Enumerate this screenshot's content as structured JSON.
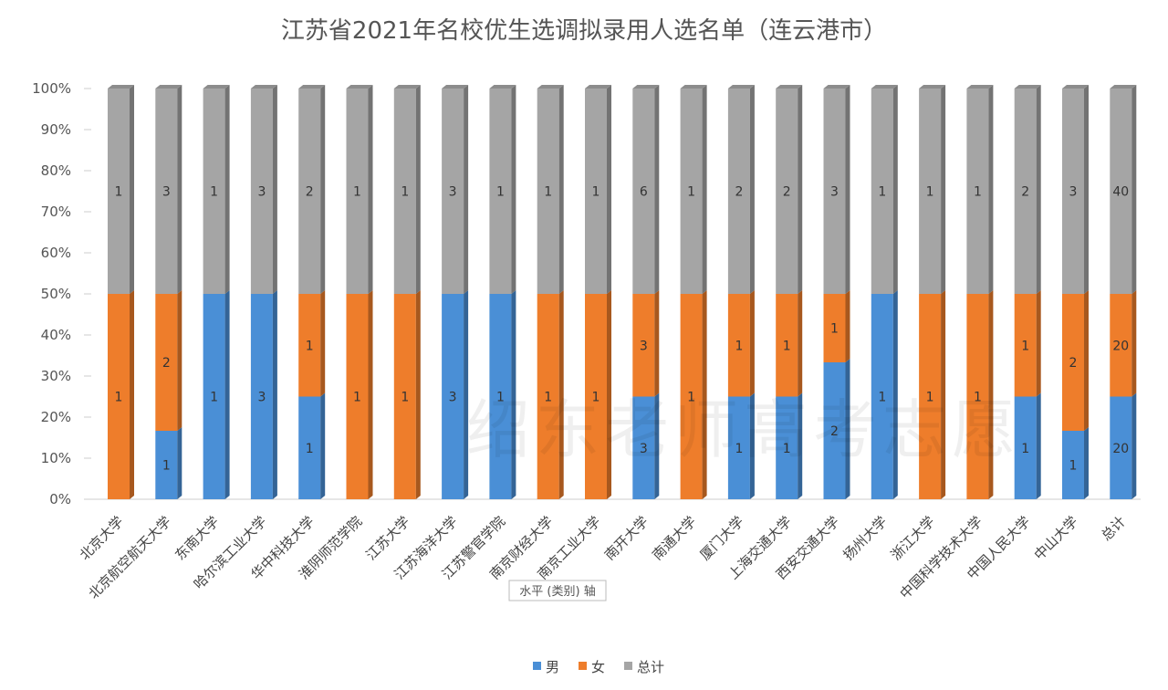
{
  "chart_data": {
    "type": "bar",
    "stacking": "percent",
    "title": "江苏省2021年名校优生选调拟录用人选名单（连云港市）",
    "categories": [
      "北京大学",
      "北京航空航天大学",
      "东南大学",
      "哈尔滨工业大学",
      "华中科技大学",
      "淮阴师范学院",
      "江苏大学",
      "江苏海洋大学",
      "江苏警官学院",
      "南京财经大学",
      "南京工业大学",
      "南开大学",
      "南通大学",
      "厦门大学",
      "上海交通大学",
      "西安交通大学",
      "扬州大学",
      "浙江大学",
      "中国科学技术大学",
      "中国人民大学",
      "中山大学",
      "总计"
    ],
    "series": [
      {
        "name": "男",
        "color": "#4a8fd6",
        "values": [
          0,
          1,
          1,
          3,
          1,
          0,
          0,
          3,
          1,
          0,
          0,
          3,
          0,
          1,
          1,
          2,
          1,
          0,
          0,
          1,
          1,
          20
        ]
      },
      {
        "name": "女",
        "color": "#ee7d2b",
        "values": [
          1,
          2,
          0,
          0,
          1,
          1,
          1,
          0,
          0,
          1,
          1,
          3,
          1,
          1,
          1,
          1,
          0,
          1,
          1,
          1,
          2,
          20
        ]
      },
      {
        "name": "总计",
        "color": "#a5a5a5",
        "values": [
          1,
          3,
          1,
          3,
          2,
          1,
          1,
          3,
          1,
          1,
          1,
          6,
          1,
          2,
          2,
          3,
          1,
          1,
          1,
          2,
          3,
          40
        ]
      }
    ],
    "yticks": [
      "0%",
      "10%",
      "20%",
      "30%",
      "40%",
      "50%",
      "60%",
      "70%",
      "80%",
      "90%",
      "100%"
    ],
    "ylim": [
      0,
      100
    ],
    "grid": false,
    "legend": "bottom",
    "xaxis_tooltip": "水平 (类别) 轴",
    "watermark": "绍东老师高考志愿"
  }
}
